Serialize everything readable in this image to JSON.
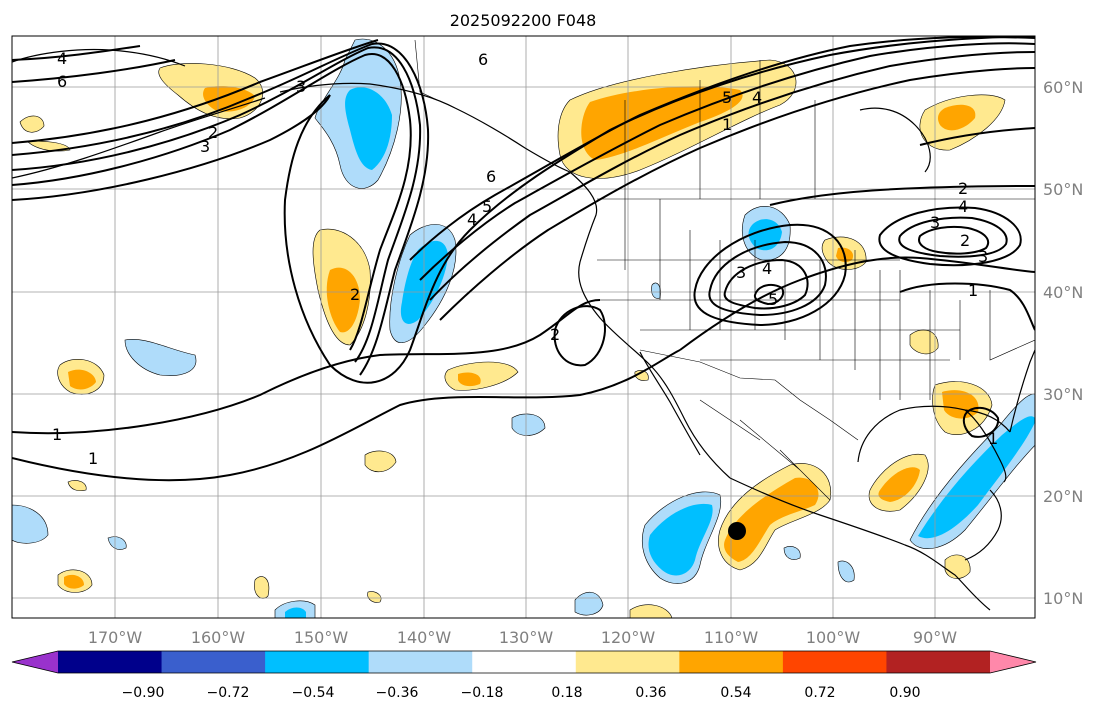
{
  "title": "2025092200 F048",
  "lon_labels": [
    "170°W",
    "160°W",
    "150°W",
    "140°W",
    "130°W",
    "120°W",
    "110°W",
    "100°W",
    "90°W"
  ],
  "lat_labels": [
    "60°N",
    "50°N",
    "40°N",
    "30°N",
    "20°N",
    "10°N"
  ],
  "colorbar": {
    "tick_labels": [
      "−0.90",
      "−0.72",
      "−0.54",
      "−0.36",
      "−0.18",
      "0.18",
      "0.36",
      "0.54",
      "0.72",
      "0.90"
    ],
    "colors": [
      "#9932cc",
      "#00008b",
      "#3a5fcd",
      "#00bfff",
      "#afdcfa",
      "#ffffff",
      "#ffe98f",
      "#ffa500",
      "#ff4500",
      "#b22222",
      "#ff88aa"
    ]
  },
  "contour_labels": [
    "4",
    "6",
    "6",
    "5",
    "4",
    "1",
    "2",
    "1",
    "1",
    "2",
    "6",
    "5",
    "4",
    "3",
    "2",
    "4",
    "3",
    "2",
    "3",
    "5",
    "2",
    "3",
    "3",
    "4",
    "1",
    "1"
  ],
  "colors": {
    "pos_light": "#ffe98f",
    "pos_mid": "#ffa500",
    "neg_light": "#afdcfa",
    "neg_mid": "#00bfff",
    "grid": "#9a9a9a"
  }
}
